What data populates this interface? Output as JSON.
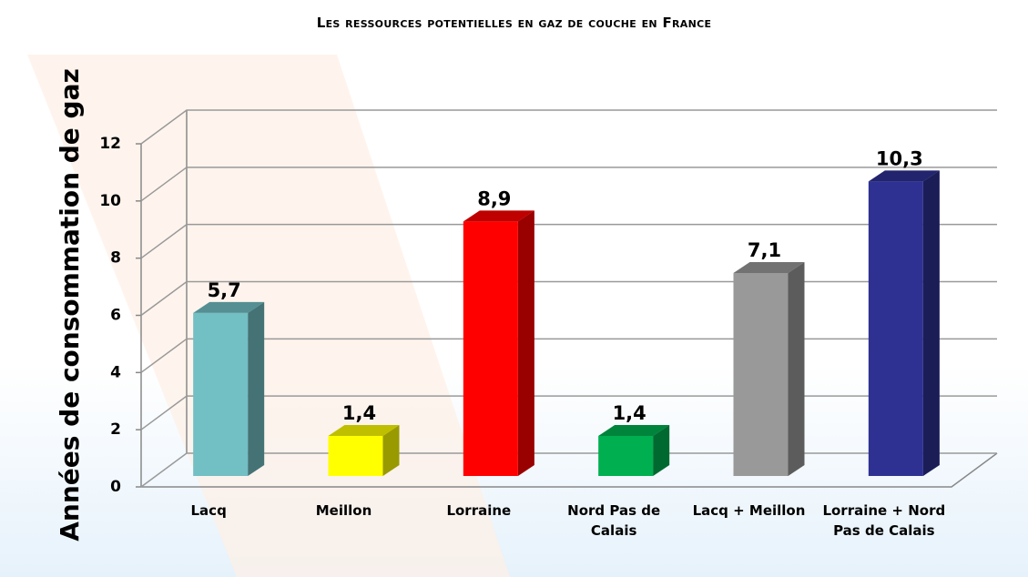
{
  "chart_data": {
    "type": "bar3d",
    "title": "Les ressources potentielles en gaz de couche en France",
    "y_axis_label": "Années de consommation de gaz",
    "categories": [
      "Lacq",
      "Meillon",
      "Lorraine",
      "Nord Pas de Calais",
      "Lacq + Meillon",
      "Lorraine + Nord Pas de Calais"
    ],
    "values": [
      5.7,
      1.4,
      8.9,
      1.4,
      7.1,
      10.3
    ],
    "value_labels": [
      "5,7",
      "1,4",
      "8,9",
      "1,4",
      "7,1",
      "10,3"
    ],
    "colors": [
      "#72bfc4",
      "#ffff00",
      "#ff0000",
      "#00b050",
      "#999999",
      "#2e3192"
    ],
    "ylim": [
      0,
      12
    ],
    "yticks": [
      0,
      2,
      4,
      6,
      8,
      10,
      12
    ],
    "grid": true
  }
}
